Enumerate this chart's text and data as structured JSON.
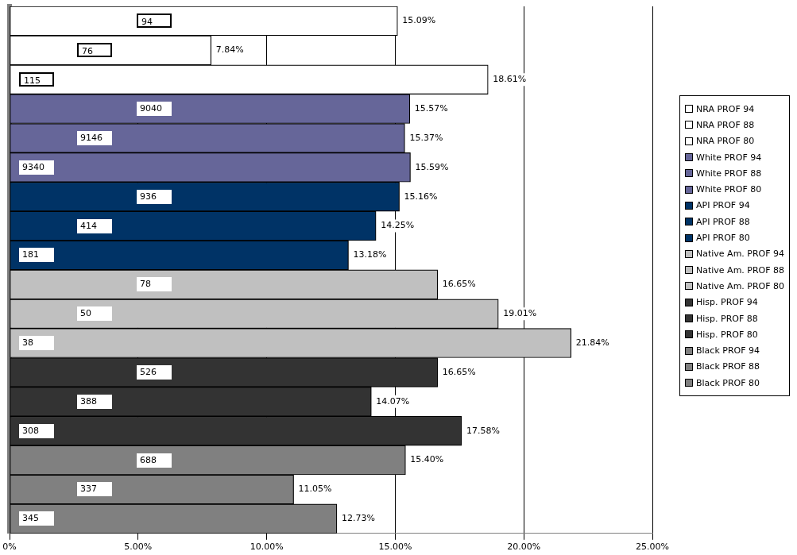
{
  "chart_data": {
    "type": "bar",
    "orientation": "horizontal",
    "categories": [
      null
    ],
    "xlim": [
      0,
      25
    ],
    "xticks": [
      {
        "value": 0,
        "label": "0%"
      },
      {
        "value": 5,
        "label": "5.00%"
      },
      {
        "value": 10,
        "label": "10.00%"
      },
      {
        "value": 15,
        "label": "15.00%"
      },
      {
        "value": 20,
        "label": "20.00%"
      },
      {
        "value": 25,
        "label": "25.00%"
      }
    ],
    "grid": "x",
    "legend": "right",
    "series": [
      {
        "name": "NRA PROF 94",
        "color": "#ffffff",
        "values": [
          15.09
        ],
        "value_labels": [
          "15.09%"
        ]
      },
      {
        "name": "NRA PROF 88",
        "color": "#ffffff",
        "values": [
          7.84
        ],
        "value_labels": [
          "7.84%"
        ]
      },
      {
        "name": "NRA PROF 80",
        "color": "#ffffff",
        "values": [
          18.61
        ],
        "value_labels": [
          "18.61%"
        ]
      },
      {
        "name": "White PROF 94",
        "color": "#666699",
        "values": [
          15.57
        ],
        "value_labels": [
          "15.57%"
        ]
      },
      {
        "name": "White PROF 88",
        "color": "#666699",
        "values": [
          15.37
        ],
        "value_labels": [
          "15.37%"
        ]
      },
      {
        "name": "White PROF 80",
        "color": "#666699",
        "values": [
          15.59
        ],
        "value_labels": [
          "15.59%"
        ]
      },
      {
        "name": "API PROF 94",
        "color": "#003366",
        "values": [
          15.16
        ],
        "value_labels": [
          "15.16%"
        ]
      },
      {
        "name": "API PROF 88",
        "color": "#003366",
        "values": [
          14.25
        ],
        "value_labels": [
          "14.25%"
        ]
      },
      {
        "name": "API PROF 80",
        "color": "#003366",
        "values": [
          13.18
        ],
        "value_labels": [
          "13.18%"
        ]
      },
      {
        "name": "Native Am. PROF 94",
        "color": "#c0c0c0",
        "values": [
          16.65
        ],
        "value_labels": [
          "16.65%"
        ]
      },
      {
        "name": "Native Am. PROF 88",
        "color": "#c0c0c0",
        "values": [
          19.01
        ],
        "value_labels": [
          "19.01%"
        ]
      },
      {
        "name": "Native Am. PROF 80",
        "color": "#c0c0c0",
        "values": [
          21.84
        ],
        "value_labels": [
          "21.84%"
        ]
      },
      {
        "name": "Hisp. PROF 94",
        "color": "#333333",
        "values": [
          16.65
        ],
        "value_labels": [
          "16.65%"
        ]
      },
      {
        "name": "Hisp. PROF 88",
        "color": "#333333",
        "values": [
          14.07
        ],
        "value_labels": [
          "14.07%"
        ]
      },
      {
        "name": "Hisp. PROF 80",
        "color": "#333333",
        "values": [
          17.58
        ],
        "value_labels": [
          "17.58%"
        ]
      },
      {
        "name": "Black PROF 94",
        "color": "#808080",
        "values": [
          15.4
        ],
        "value_labels": [
          "15.40%"
        ]
      },
      {
        "name": "Black PROF 88",
        "color": "#808080",
        "values": [
          11.05
        ],
        "value_labels": [
          "11.05%"
        ]
      },
      {
        "name": "Black PROF 80",
        "color": "#808080",
        "values": [
          12.73
        ],
        "value_labels": [
          "12.73%"
        ]
      }
    ],
    "annotations": [
      "94",
      "76",
      "115",
      "9040",
      "9146",
      "9340",
      "936",
      "414",
      "181",
      "78",
      "50",
      "38",
      "526",
      "388",
      "308",
      "688",
      "337",
      "345"
    ]
  }
}
